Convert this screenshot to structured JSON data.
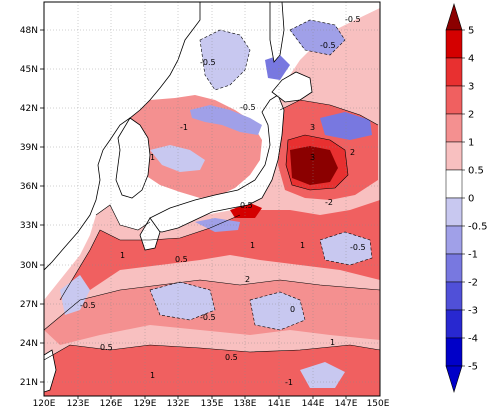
{
  "map": {
    "lat_labels": [
      "48N",
      "45N",
      "42N",
      "39N",
      "36N",
      "33N",
      "30N",
      "27N",
      "24N",
      "21N"
    ],
    "lon_labels": [
      "120E",
      "123E",
      "126E",
      "129E",
      "132E",
      "135E",
      "138E",
      "141E",
      "144E",
      "147E",
      "150E"
    ],
    "lat_range": [
      20,
      50
    ],
    "lon_range": [
      120,
      150
    ],
    "contour_labels": [
      "0.5",
      "1",
      "-0.5",
      "0",
      "2",
      "-1",
      "-2",
      "3"
    ]
  },
  "colorbar": {
    "levels": [
      "5",
      "4",
      "3",
      "2",
      "1",
      "0.5",
      "0",
      "-0.5",
      "-1",
      "-2",
      "-3",
      "-4",
      "-5"
    ],
    "colors": [
      "#8b0000",
      "#d40000",
      "#e83030",
      "#f06060",
      "#f49090",
      "#f8c0c0",
      "#ffffff",
      "#c8c8f0",
      "#a0a0e8",
      "#7878e0",
      "#5050d8",
      "#2828d0",
      "#0000c8"
    ]
  }
}
